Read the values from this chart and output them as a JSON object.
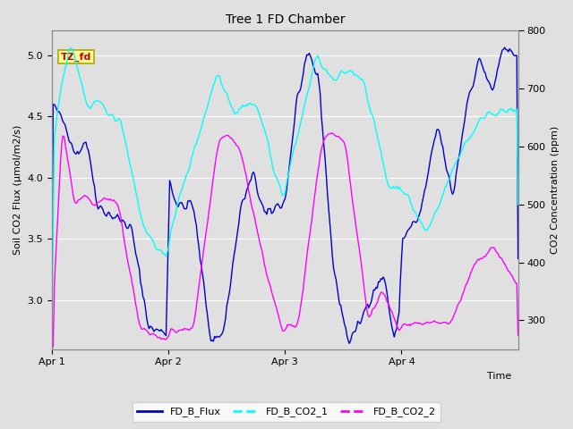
{
  "title": "Tree 1 FD Chamber",
  "xlabel": "Time",
  "ylabel_left": "Soil CO2 Flux (μmol/m2/s)",
  "ylabel_right": "CO2 Concentration (ppm)",
  "ylim_left": [
    2.6,
    5.2
  ],
  "ylim_right": [
    250,
    800
  ],
  "color_flux": "#0000CD",
  "color_co2_1": "#00FFFF",
  "color_co2_2": "#FF00FF",
  "annotation_text": "TZ_fd",
  "annotation_color": "#CC0000",
  "annotation_bg": "#FFFF99",
  "annotation_edge": "#AAAA00",
  "bg_color": "#E0E0E0",
  "grid_color": "#FFFFFF",
  "legend_labels": [
    "FD_B_Flux",
    "FD_B_CO2_1",
    "FD_B_CO2_2"
  ],
  "xtick_labels": [
    "Apr 1",
    "Apr 2",
    "Apr 3",
    "Apr 4"
  ],
  "xtick_positions": [
    0,
    96,
    192,
    288
  ],
  "n_points": 385,
  "seed": 42
}
